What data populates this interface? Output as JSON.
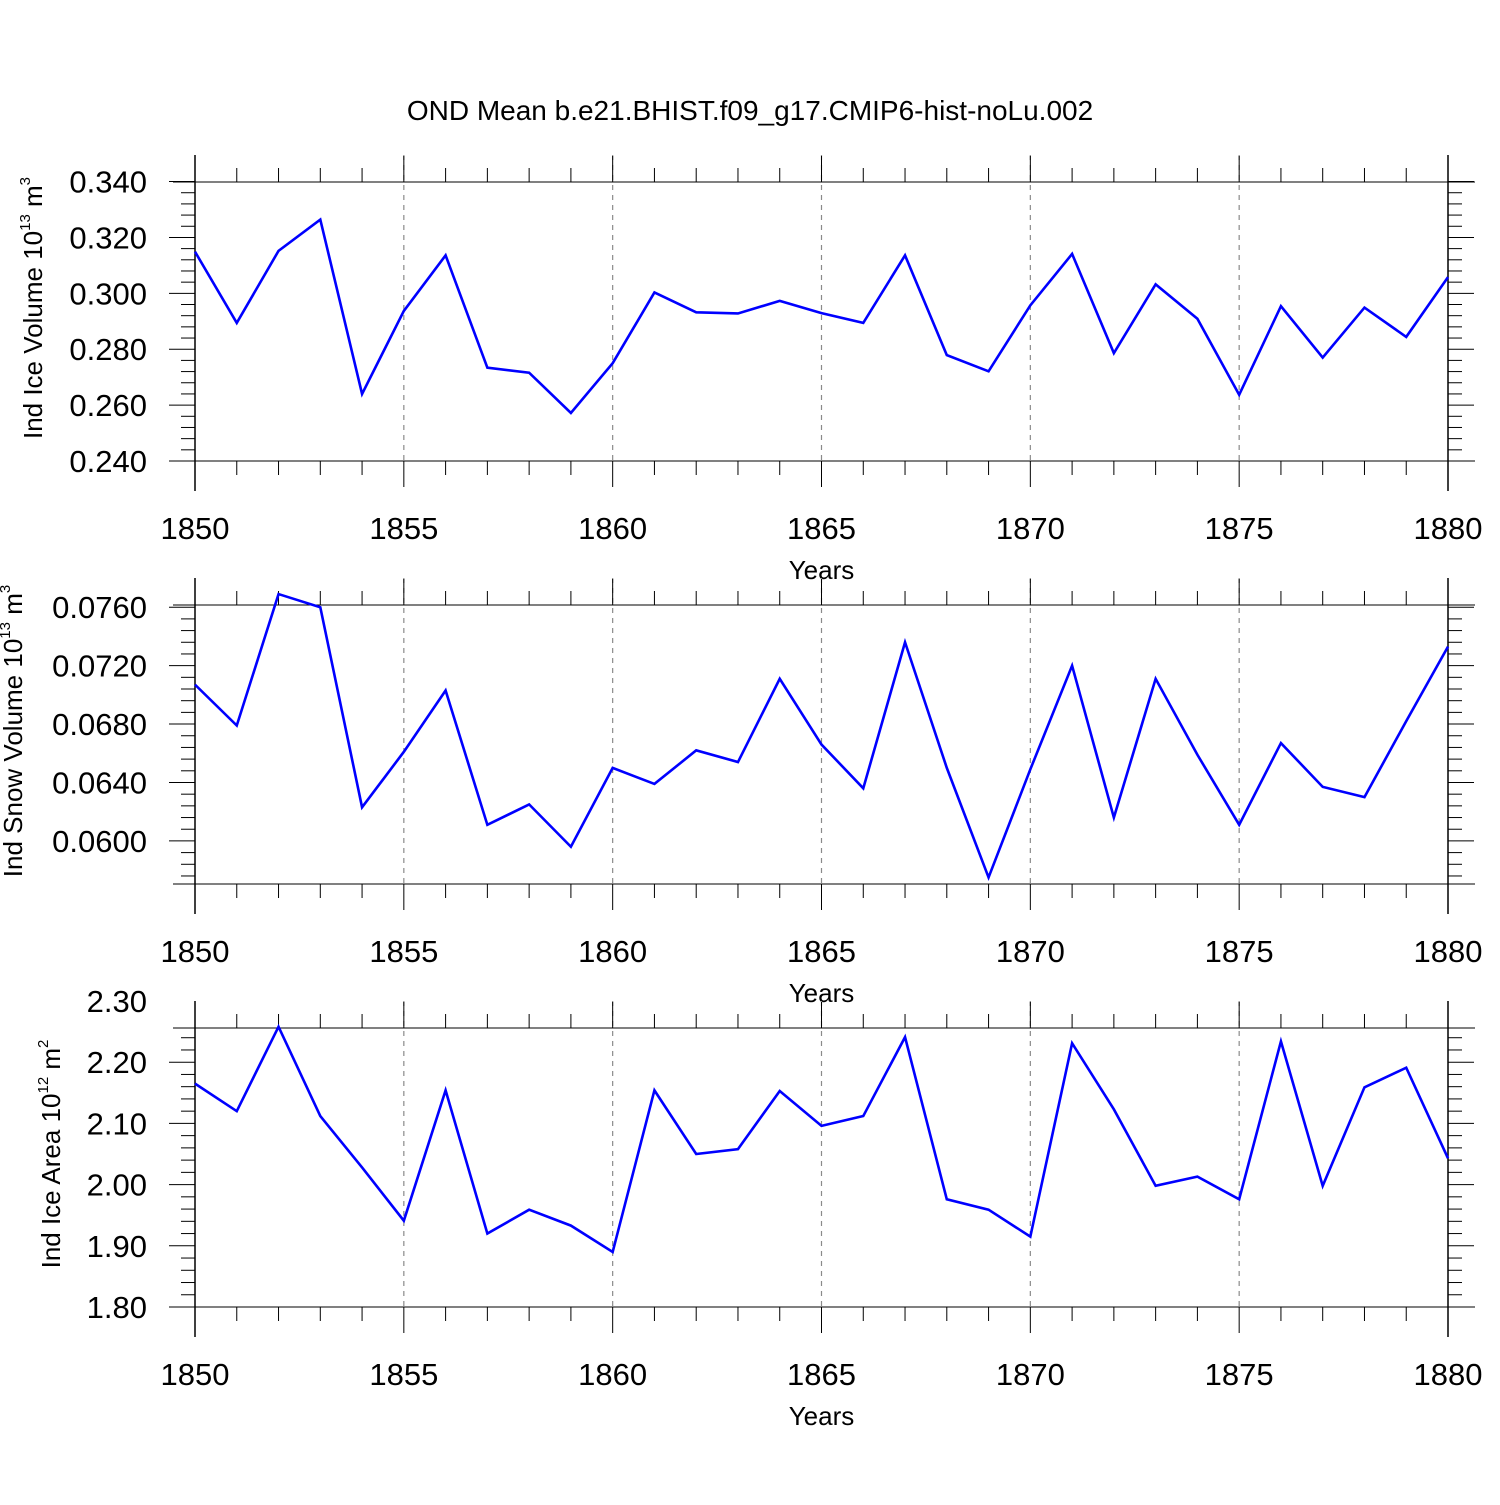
{
  "title": "OND Mean b.e21.BHIST.f09_g17.CMIP6-hist-noLu.002",
  "line_color": "#0000ff",
  "chart_data": [
    {
      "type": "line",
      "xlabel": "Years",
      "ylabel": "Ind Ice Volume 10",
      "ylabel_exp": "13",
      "ylabel_unit": " m",
      "ylabel_unit_exp": "3",
      "xlim": [
        1850,
        1880
      ],
      "ylim": [
        0.24,
        0.349
      ],
      "xticks": [
        "1850",
        "1855",
        "1860",
        "1865",
        "1870",
        "1875",
        "1880"
      ],
      "yticks": [
        "0.240",
        "0.260",
        "0.280",
        "0.300",
        "0.320",
        "0.340"
      ],
      "x": [
        1850,
        1851,
        1852,
        1853,
        1854,
        1855,
        1856,
        1857,
        1858,
        1859,
        1860,
        1861,
        1862,
        1863,
        1864,
        1865,
        1866,
        1867,
        1868,
        1869,
        1870,
        1871,
        1872,
        1873,
        1874,
        1875,
        1876,
        1877,
        1878,
        1879,
        1880
      ],
      "series": [
        {
          "values": [
            0.3149,
            0.2894,
            0.3152,
            0.3264,
            0.264,
            0.2937,
            0.3136,
            0.2734,
            0.2716,
            0.2572,
            0.275,
            0.3003,
            0.2932,
            0.2928,
            0.2973,
            0.2929,
            0.2894,
            0.3136,
            0.2779,
            0.2721,
            0.2957,
            0.3141,
            0.2786,
            0.3032,
            0.2909,
            0.2637,
            0.2954,
            0.277,
            0.2949,
            0.2844,
            0.3058
          ]
        }
      ]
    },
    {
      "type": "line",
      "xlabel": "Years",
      "ylabel": "Ind Snow Volume 10",
      "ylabel_exp": "13",
      "ylabel_unit": " m",
      "ylabel_unit_exp": "3",
      "xlim": [
        1850,
        1880
      ],
      "ylim": [
        0.0571,
        0.078
      ],
      "xticks": [
        "1850",
        "1855",
        "1860",
        "1865",
        "1870",
        "1875",
        "1880"
      ],
      "yticks": [
        "0.0600",
        "0.0640",
        "0.0680",
        "0.0720",
        "0.0760"
      ],
      "x": [
        1850,
        1851,
        1852,
        1853,
        1854,
        1855,
        1856,
        1857,
        1858,
        1859,
        1860,
        1861,
        1862,
        1863,
        1864,
        1865,
        1866,
        1867,
        1868,
        1869,
        1870,
        1871,
        1872,
        1873,
        1874,
        1875,
        1876,
        1877,
        1878,
        1879,
        1880
      ],
      "series": [
        {
          "values": [
            0.0707,
            0.0679,
            0.0769,
            0.076,
            0.0623,
            0.0661,
            0.0703,
            0.0611,
            0.0625,
            0.0596,
            0.065,
            0.0639,
            0.0662,
            0.0654,
            0.0711,
            0.0666,
            0.0636,
            0.0736,
            0.065,
            0.0575,
            0.0649,
            0.072,
            0.0616,
            0.0711,
            0.0659,
            0.0611,
            0.0667,
            0.0637,
            0.063,
            0.0682,
            0.0733
          ]
        }
      ]
    },
    {
      "type": "line",
      "xlabel": "Years",
      "ylabel": "Ind Ice Area 10",
      "ylabel_exp": "12",
      "ylabel_unit": " m",
      "ylabel_unit_exp": "2",
      "xlim": [
        1850,
        1880
      ],
      "ylim": [
        1.8,
        2.3
      ],
      "xticks": [
        "1850",
        "1855",
        "1860",
        "1865",
        "1870",
        "1875",
        "1880"
      ],
      "yticks": [
        "1.80",
        "1.90",
        "2.00",
        "2.10",
        "2.20",
        "2.30"
      ],
      "x": [
        1850,
        1851,
        1852,
        1853,
        1854,
        1855,
        1856,
        1857,
        1858,
        1859,
        1860,
        1861,
        1862,
        1863,
        1864,
        1865,
        1866,
        1867,
        1868,
        1869,
        1870,
        1871,
        1872,
        1873,
        1874,
        1875,
        1876,
        1877,
        1878,
        1879,
        1880
      ],
      "series": [
        {
          "values": [
            2.165,
            2.12,
            2.258,
            2.112,
            2.028,
            1.941,
            2.154,
            1.92,
            1.959,
            1.933,
            1.89,
            2.154,
            2.05,
            2.058,
            2.153,
            2.096,
            2.112,
            2.241,
            1.976,
            1.959,
            1.915,
            2.231,
            2.123,
            1.998,
            2.013,
            1.976,
            2.234,
            1.998,
            2.159,
            2.191,
            2.043
          ]
        }
      ]
    }
  ]
}
